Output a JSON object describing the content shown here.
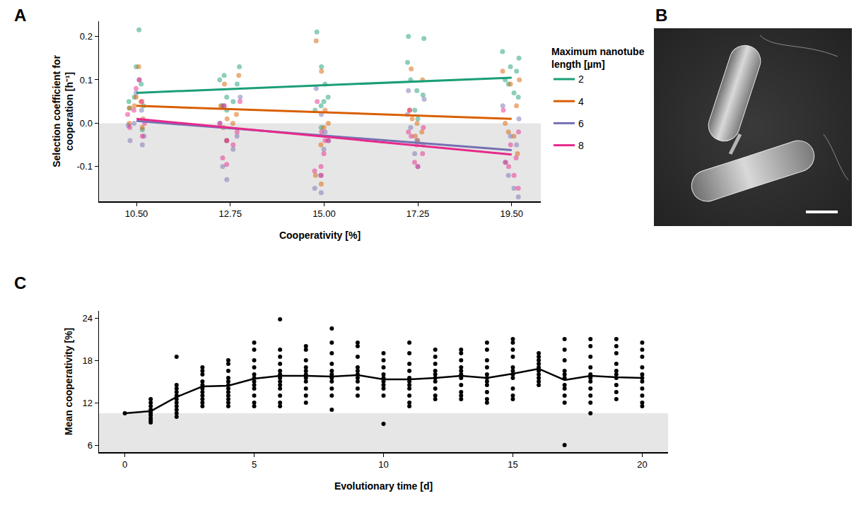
{
  "chart_data": [
    {
      "panel": "A",
      "type": "scatter",
      "x_label": "Cooperativity [%]",
      "y_label": "Selection coefficient for cooperation [h⁻¹]",
      "xlim": [
        9.6,
        20.2
      ],
      "ylim": [
        -0.18,
        0.235
      ],
      "xticks": [
        {
          "value": 10.5,
          "label": "10.50"
        },
        {
          "value": 12.75,
          "label": "12.75"
        },
        {
          "value": 15,
          "label": "15.00"
        },
        {
          "value": 17.25,
          "label": "17.25"
        },
        {
          "value": 19.5,
          "label": "19.50"
        }
      ],
      "yticks": [
        -0.1,
        {
          "value": 0,
          "label": "0.0"
        },
        0.1,
        0.2
      ],
      "shade_below": 0,
      "legend": "right",
      "legend_title": "Maximum nanotube length [µm]",
      "x": [
        10.5,
        12.75,
        15,
        17.25,
        19.5
      ],
      "trend_x": [
        10.5,
        19.5
      ],
      "series": [
        {
          "name": "2",
          "color": "#1b9e77",
          "values": [
            [
              0.215,
              0.13,
              0.09,
              0.06,
              0.05,
              0.04,
              0.035,
              -0.015
            ],
            [
              0.13,
              0.11,
              0.1,
              0.09,
              0.06,
              0.05,
              0.04,
              0.03
            ],
            [
              0.21,
              0.13,
              0.09,
              0.06,
              0.05,
              0.04,
              0.03,
              -0.01
            ],
            [
              0.2,
              0.195,
              0.14,
              0.1,
              0.075,
              0.065,
              0.03,
              0.01
            ],
            [
              0.165,
              0.15,
              0.13,
              0.12,
              0.1,
              0.09,
              0.07,
              0.06
            ]
          ],
          "trend": [
            0.07,
            0.105
          ]
        },
        {
          "name": "4",
          "color": "#d95f02",
          "values": [
            [
              0.13,
              0.06,
              0.05,
              0.04,
              0.035,
              0.01,
              0.0,
              -0.01
            ],
            [
              0.11,
              0.09,
              0.04,
              0.02,
              0.01,
              0.0,
              -0.01,
              -0.04
            ],
            [
              0.19,
              0.12,
              0.03,
              0.0,
              -0.01,
              -0.05,
              -0.12,
              -0.14
            ],
            [
              0.125,
              0.1,
              0.03,
              0.01,
              0.0,
              -0.02,
              -0.03,
              -0.04
            ],
            [
              0.12,
              0.1,
              0.09,
              0.04,
              0.0,
              -0.02,
              -0.03,
              -0.07
            ]
          ],
          "trend": [
            0.04,
            0.01
          ]
        },
        {
          "name": "6",
          "color": "#7570b3",
          "values": [
            [
              0.1,
              0.07,
              0.03,
              0.0,
              -0.005,
              -0.03,
              -0.04,
              -0.05
            ],
            [
              0.06,
              0.04,
              0.0,
              -0.03,
              -0.04,
              -0.06,
              -0.1,
              -0.13
            ],
            [
              0.08,
              0.02,
              -0.02,
              -0.04,
              -0.06,
              -0.12,
              -0.15,
              -0.16
            ],
            [
              0.075,
              0.055,
              0.02,
              -0.01,
              -0.04,
              -0.05,
              -0.07,
              -0.1
            ],
            [
              0.04,
              0.01,
              -0.03,
              -0.05,
              -0.09,
              -0.12,
              -0.15,
              -0.17
            ]
          ],
          "trend": [
            0.005,
            -0.062
          ]
        },
        {
          "name": "8",
          "color": "#e7298a",
          "values": [
            [
              0.1,
              0.08,
              0.05,
              0.03,
              0.02,
              0.0,
              -0.01,
              -0.03
            ],
            [
              0.05,
              0.04,
              0.0,
              -0.02,
              -0.04,
              -0.05,
              -0.08,
              -0.095
            ],
            [
              0.05,
              -0.02,
              -0.04,
              -0.04,
              -0.07,
              -0.1,
              -0.11,
              -0.12
            ],
            [
              0.03,
              -0.01,
              -0.02,
              -0.03,
              -0.05,
              -0.07,
              -0.09,
              -0.1
            ],
            [
              0.03,
              -0.02,
              -0.05,
              -0.08,
              -0.09,
              -0.1,
              -0.12,
              -0.15
            ]
          ],
          "trend": [
            0.01,
            -0.072
          ]
        }
      ]
    },
    {
      "panel": "B",
      "type": "image"
    },
    {
      "panel": "C",
      "type": "scatter",
      "x_label": "Evolutionary time [d]",
      "y_label": "Mean cooperativity [%]",
      "xlim": [
        -1,
        21
      ],
      "ylim": [
        5,
        25
      ],
      "xticks": [
        0,
        5,
        10,
        15,
        20
      ],
      "yticks": [
        6,
        12,
        18,
        24
      ],
      "shade_below": 10.5,
      "series": [
        {
          "type": "scatter",
          "color": "#000000",
          "x": [
            0,
            1,
            2,
            3,
            4,
            5,
            6,
            7,
            8,
            9,
            10,
            11,
            12,
            13,
            14,
            15,
            16,
            17,
            18,
            19,
            20
          ],
          "values": [
            [
              10.5
            ],
            [
              12.5,
              12,
              11.5,
              11,
              10.8,
              10.5,
              10.2,
              9.8,
              9.5,
              9.2
            ],
            [
              18.5,
              14.5,
              14,
              13.5,
              13,
              12.5,
              12,
              11.5,
              11,
              10.5,
              10
            ],
            [
              17,
              16.5,
              16,
              15,
              14.5,
              14,
              13.5,
              13,
              12.5,
              12,
              11.5
            ],
            [
              18,
              17.5,
              16.5,
              15.5,
              15,
              14.5,
              14,
              13.5,
              13,
              12.5,
              12,
              11.5
            ],
            [
              20.5,
              19.5,
              18,
              17,
              16,
              15.5,
              15,
              14.5,
              14,
              13,
              12,
              11.5
            ],
            [
              23.8,
              19.5,
              18.5,
              17.5,
              16.5,
              16,
              15.5,
              15,
              14.5,
              14,
              13,
              12,
              11.5
            ],
            [
              20,
              19.5,
              18,
              17,
              16.5,
              16,
              15.5,
              15,
              14,
              13,
              12
            ],
            [
              22.5,
              20.5,
              19,
              17.5,
              16.5,
              16,
              15.5,
              15,
              14,
              13,
              11
            ],
            [
              20.5,
              20,
              18.5,
              17,
              16.5,
              16,
              15.5,
              15,
              14,
              13
            ],
            [
              19,
              18,
              17,
              16,
              15.5,
              15,
              14.5,
              14,
              13,
              9
            ],
            [
              20.5,
              19,
              17.5,
              16.5,
              15.5,
              15,
              14.5,
              14,
              13,
              12,
              11.5
            ],
            [
              19.5,
              18.5,
              17.5,
              16.5,
              16,
              15.5,
              15,
              14,
              13,
              12.5
            ],
            [
              19.5,
              19,
              18,
              17,
              16.5,
              16,
              15.5,
              14.5,
              13.5,
              13,
              12.5
            ],
            [
              20.5,
              19.5,
              18,
              17,
              16,
              15.5,
              15,
              14.5,
              13.5,
              12.5,
              12
            ],
            [
              21,
              20.5,
              19.5,
              18.5,
              17,
              16.5,
              16,
              15.5,
              14,
              13,
              12.5
            ],
            [
              19,
              18.5,
              18,
              17.5,
              17,
              16.5,
              16,
              15.5,
              15,
              14.5
            ],
            [
              21,
              19.5,
              18,
              16.5,
              16,
              15.5,
              14.5,
              14,
              13,
              12,
              6
            ],
            [
              21,
              20,
              18.5,
              17,
              16,
              15.5,
              15,
              14,
              13,
              12,
              10.5
            ],
            [
              21,
              20,
              19,
              17.5,
              16.5,
              16,
              15.5,
              14.5,
              13.5,
              12.5
            ],
            [
              20.5,
              19.5,
              18.5,
              17,
              16,
              15.5,
              15,
              14,
              13,
              12,
              11.5
            ]
          ]
        },
        {
          "type": "line",
          "color": "#000000",
          "x": [
            0,
            1,
            2,
            3,
            4,
            5,
            6,
            7,
            8,
            9,
            10,
            11,
            12,
            13,
            14,
            15,
            16,
            17,
            18,
            19,
            20
          ],
          "values": [
            10.5,
            10.8,
            12.8,
            14.3,
            14.4,
            15.4,
            15.8,
            15.8,
            15.7,
            15.9,
            15.3,
            15.3,
            15.5,
            15.8,
            15.5,
            16.1,
            16.8,
            15.2,
            15.8,
            15.6,
            15.5
          ]
        }
      ]
    }
  ]
}
